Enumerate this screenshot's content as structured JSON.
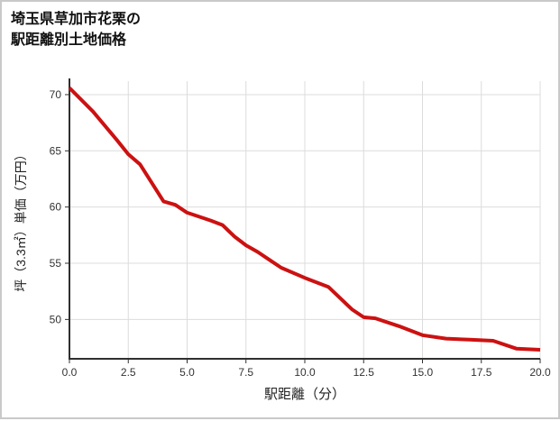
{
  "chart_data": {
    "type": "line",
    "title": "埼玉県草加市花栗の駅距離別土地価格",
    "title_line1": "埼玉県草加市花栗の",
    "title_line2": "駅距離別土地価格",
    "xlabel": "駅距離（分）",
    "ylabel": "坪（3.3㎡）単価（万円）",
    "x": [
      0,
      1,
      2,
      2.5,
      3,
      4,
      4.5,
      5,
      6,
      6.5,
      7,
      7.5,
      8,
      8.5,
      9,
      10,
      11,
      12,
      12.5,
      13,
      14,
      15,
      16,
      17,
      18,
      19,
      20
    ],
    "y": [
      70.6,
      68.5,
      66.0,
      64.7,
      63.8,
      60.5,
      60.2,
      59.5,
      58.8,
      58.4,
      57.4,
      56.6,
      56.0,
      55.3,
      54.6,
      53.7,
      52.9,
      50.9,
      50.2,
      50.1,
      49.4,
      48.6,
      48.3,
      48.2,
      48.1,
      47.4,
      47.3
    ],
    "xlim": [
      0,
      20
    ],
    "ylim": [
      46.5,
      71.2
    ],
    "xtick_values": [
      0,
      2.5,
      5,
      7.5,
      10,
      12.5,
      15,
      17.5,
      20
    ],
    "xtick_labels": [
      "0.0",
      "2.5",
      "5.0",
      "7.5",
      "10.0",
      "12.5",
      "15.0",
      "17.5",
      "20.0"
    ],
    "ytick_values": [
      50,
      55,
      60,
      65,
      70
    ],
    "ytick_labels": [
      "50",
      "55",
      "60",
      "65",
      "70"
    ],
    "grid": true,
    "legend": false,
    "line_color": "#cc1111",
    "grid_color": "#dcdcdc",
    "axis_color": "#2f2f2f",
    "text_color": "#333333"
  }
}
